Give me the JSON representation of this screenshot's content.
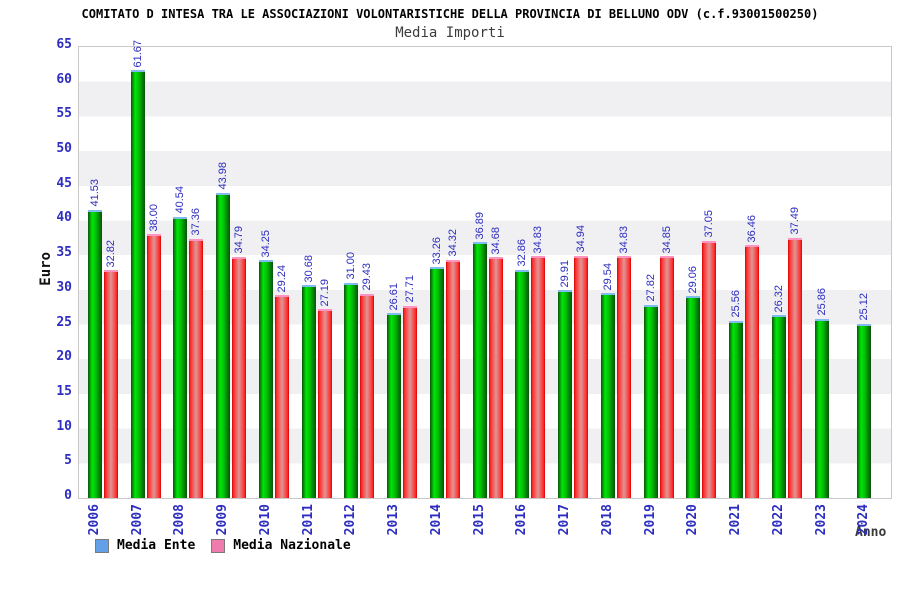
{
  "header": {
    "title": "COMITATO D INTESA TRA LE ASSOCIAZIONI VOLONTARISTICHE DELLA PROVINCIA DI BELLUNO ODV (c.f.93001500250)",
    "subtitle": "Media Importi"
  },
  "axes": {
    "y_label": "Euro",
    "x_label": "Anno",
    "y_ticks": [
      0,
      5,
      10,
      15,
      20,
      25,
      30,
      35,
      40,
      45,
      50,
      55,
      60,
      65
    ]
  },
  "colors": {
    "tick_label_blue": "#2d2dc0",
    "value_label_blue": "#2d2dc0",
    "bar_green_bright": "#00e606",
    "bar_green_dark": "#0a520a",
    "bar_green_cap": "#82bbf2",
    "bar_red_bright": "#ff2e2e",
    "bar_red_pale": "#e09595",
    "bar_red_cap": "#ff93c2",
    "legend_ente_swatch": "#64a0e8",
    "legend_nazionale_swatch": "#ef7cac",
    "band_gray": "#f0f0f2",
    "plot_border": "#c9c9c9"
  },
  "chart_data": {
    "type": "bar",
    "title": "Media Importi",
    "suptitle": "COMITATO D INTESA TRA LE ASSOCIAZIONI VOLONTARISTICHE DELLA PROVINCIA DI BELLUNO ODV (c.f.93001500250)",
    "xlabel": "Anno",
    "ylabel": "Euro",
    "ylim": [
      0,
      65
    ],
    "ytick_step": 5,
    "grid": "horizontal-bands",
    "legend_position": "bottom",
    "categories": [
      "2006",
      "2007",
      "2008",
      "2009",
      "2010",
      "2011",
      "2012",
      "2013",
      "2014",
      "2015",
      "2016",
      "2017",
      "2018",
      "2019",
      "2020",
      "2021",
      "2022",
      "2023",
      "2024"
    ],
    "series": [
      {
        "name": "Media Ente",
        "values": [
          41.53,
          61.67,
          40.54,
          43.98,
          34.25,
          30.68,
          31.0,
          26.61,
          33.26,
          36.89,
          32.86,
          29.91,
          29.54,
          27.82,
          29.06,
          25.56,
          26.32,
          25.86,
          25.12
        ]
      },
      {
        "name": "Media Nazionale",
        "values": [
          32.82,
          38.0,
          37.36,
          34.79,
          29.24,
          27.19,
          29.43,
          27.71,
          34.32,
          34.68,
          34.83,
          34.94,
          34.83,
          34.85,
          37.05,
          36.46,
          37.49,
          null,
          null
        ]
      }
    ]
  }
}
